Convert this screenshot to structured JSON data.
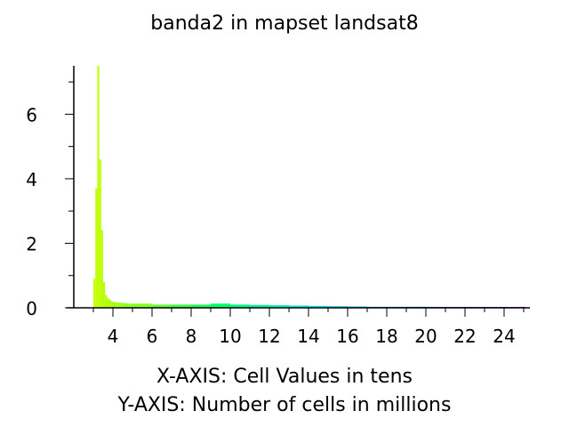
{
  "chart_data": {
    "type": "bar",
    "title": "banda2 in mapset landsat8",
    "xlabel": "X-AXIS: Cell Values in tens",
    "ylabel": "Y-AXIS: Number of cells in millions",
    "xlim": [
      2.0,
      25.6
    ],
    "ylim": [
      0,
      7.5
    ],
    "x_ticks": [
      "4",
      "6",
      "8",
      "10",
      "12",
      "14",
      "16",
      "18",
      "20",
      "22",
      "24"
    ],
    "y_ticks": [
      "0",
      "2",
      "4",
      "6"
    ],
    "bar_width": 0.1,
    "grid": false,
    "legend": "none",
    "color_ramp": [
      "#c8ff00",
      "#00ff60",
      "#00e0ff",
      "#0040ff",
      "#ff00ff"
    ],
    "bins": {
      "x": [
        3.0,
        3.1,
        3.2,
        3.3,
        3.4,
        3.5,
        3.6,
        3.7,
        3.8,
        3.9,
        4.0,
        4.2,
        4.4,
        4.6,
        4.8,
        5.0,
        6.0,
        7.0,
        8.0,
        9.0,
        10.0,
        11.0,
        12.0,
        13.0,
        14.0,
        15.0,
        16.0,
        17.0,
        18.0,
        19.0,
        20.0,
        21.0,
        22.0,
        23.0,
        24.0,
        25.0
      ],
      "y": [
        0.9,
        3.7,
        7.5,
        4.6,
        2.4,
        0.8,
        0.4,
        0.3,
        0.25,
        0.2,
        0.18,
        0.16,
        0.15,
        0.14,
        0.13,
        0.13,
        0.1,
        0.1,
        0.1,
        0.13,
        0.1,
        0.09,
        0.08,
        0.07,
        0.06,
        0.05,
        0.04,
        0.03,
        0.03,
        0.03,
        0.02,
        0.02,
        0.02,
        0.02,
        0.01,
        0.01
      ]
    }
  }
}
